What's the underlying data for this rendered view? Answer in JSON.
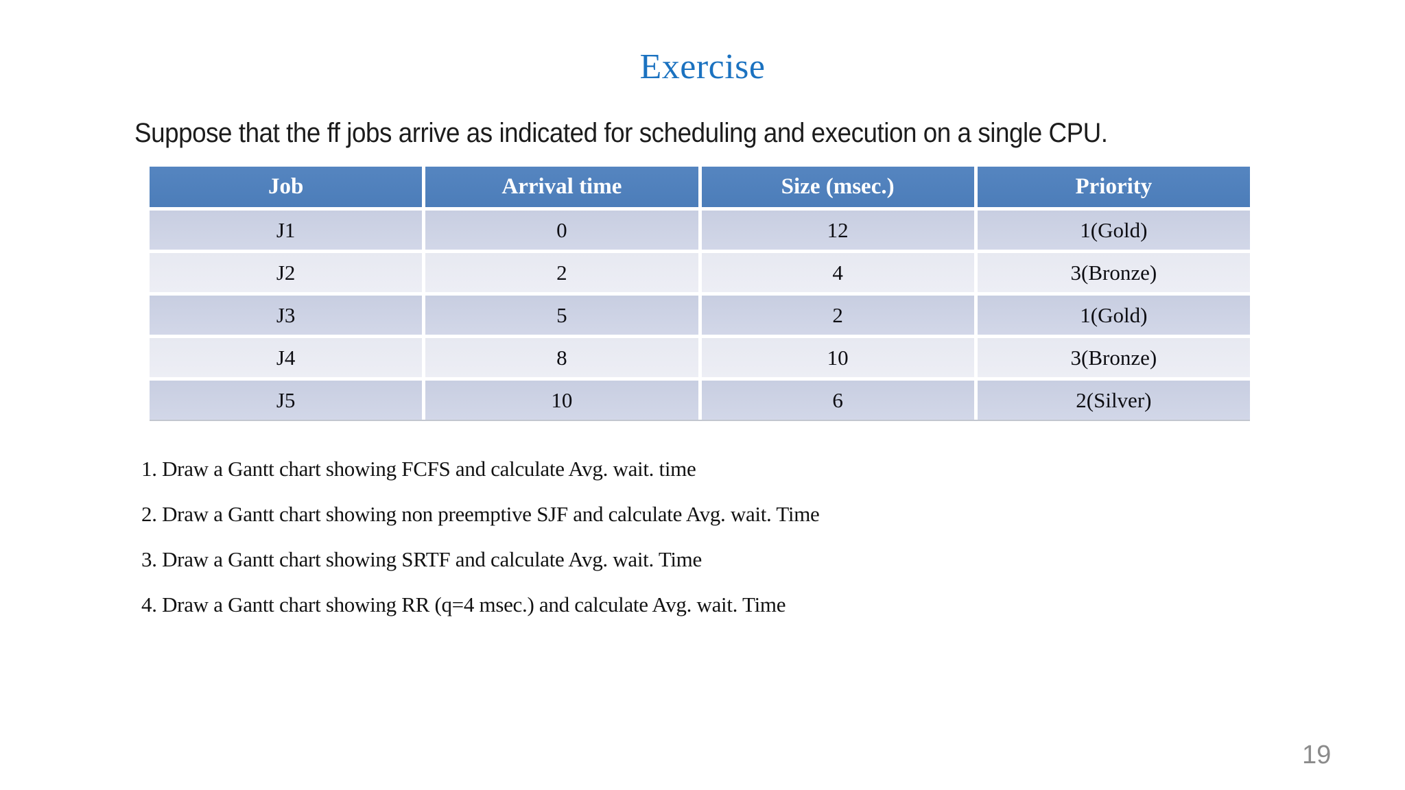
{
  "slide": {
    "title": "Exercise",
    "intro": "Suppose that the ff jobs arrive as indicated for scheduling and execution on a single CPU.",
    "page_number": "19"
  },
  "table": {
    "headers": [
      "Job",
      "Arrival time",
      "Size (msec.)",
      "Priority"
    ],
    "rows": [
      [
        "J1",
        "0",
        "12",
        "1(Gold)"
      ],
      [
        "J2",
        "2",
        "4",
        "3(Bronze)"
      ],
      [
        "J3",
        "5",
        "2",
        "1(Gold)"
      ],
      [
        "J4",
        "8",
        "10",
        "3(Bronze)"
      ],
      [
        "J5",
        "10",
        "6",
        "2(Silver)"
      ]
    ]
  },
  "tasks": [
    "1. Draw a Gantt chart showing FCFS and calculate Avg. wait. time",
    "2. Draw a Gantt chart showing non preemptive SJF and calculate Avg. wait. Time",
    "3. Draw a Gantt chart showing SRTF and calculate Avg. wait. Time",
    "4. Draw a Gantt chart showing RR (q=4 msec.) and calculate Avg. wait. Time"
  ],
  "colors": {
    "title_blue": "#1b72c0",
    "table_header_bg": "#4f7fbc",
    "row_odd_bg": "#cdd3e4",
    "row_even_bg": "#e9ebf2",
    "page_number_gray": "#8b8b8b"
  }
}
